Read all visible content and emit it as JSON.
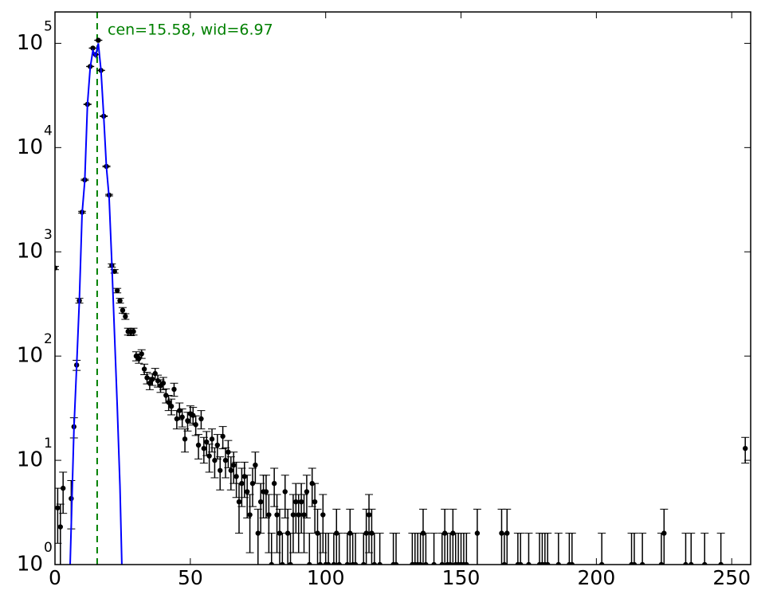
{
  "chart_data": {
    "type": "errorbar",
    "log_y": true,
    "annotation": "cen=15.58, wid=6.97",
    "vline": {
      "x": 15.58,
      "color": "#008000"
    },
    "xlim": [
      0,
      257
    ],
    "ylim": [
      1,
      200000
    ],
    "xticks": [
      0,
      50,
      100,
      150,
      200,
      250
    ],
    "yticks": [
      {
        "value": 1,
        "label": "10",
        "exponent": "0"
      },
      {
        "value": 10,
        "label": "10",
        "exponent": "1"
      },
      {
        "value": 100,
        "label": "10",
        "exponent": "2"
      },
      {
        "value": 1000,
        "label": "10",
        "exponent": "3"
      },
      {
        "value": 10000,
        "label": "10",
        "exponent": "4"
      },
      {
        "value": 100000,
        "label": "10",
        "exponent": "5"
      }
    ],
    "series": [
      {
        "color": "#000000",
        "x": [
          0,
          1,
          2,
          3,
          4,
          5,
          6,
          7,
          8,
          9,
          10,
          11,
          12,
          13,
          14,
          15,
          16,
          17,
          18,
          19,
          20,
          21,
          22,
          23,
          24,
          25,
          26,
          27,
          28,
          29,
          30,
          31,
          32,
          33,
          34,
          35,
          36,
          37,
          38,
          39,
          40,
          41,
          42,
          43,
          44,
          45,
          46,
          47,
          48,
          49,
          50,
          51,
          52,
          53,
          54,
          55,
          56,
          57,
          58,
          59,
          60,
          61,
          62,
          63,
          64,
          65,
          66,
          67,
          68,
          69,
          70,
          71,
          72,
          73,
          74,
          75,
          76,
          77,
          78,
          79,
          80,
          81,
          82,
          83,
          84,
          85,
          86,
          87,
          88,
          89,
          90,
          91,
          92,
          93,
          94,
          95,
          96,
          97,
          98,
          99,
          100,
          101,
          102,
          103,
          104,
          105,
          106,
          107,
          108,
          109,
          110,
          111,
          112,
          113,
          114,
          115,
          116,
          117,
          118,
          119,
          120,
          121,
          122,
          123,
          124,
          125,
          126,
          127,
          128,
          129,
          130,
          131,
          132,
          133,
          134,
          135,
          136,
          137,
          138,
          139,
          140,
          141,
          142,
          143,
          144,
          145,
          146,
          147,
          148,
          149,
          150,
          151,
          152,
          153,
          154,
          155,
          156,
          157,
          158,
          159,
          160,
          161,
          162,
          163,
          164,
          165,
          166,
          167,
          168,
          169,
          170,
          171,
          172,
          173,
          174,
          175,
          176,
          177,
          178,
          179,
          180,
          181,
          182,
          183,
          184,
          185,
          186,
          187,
          188,
          189,
          190,
          191,
          192,
          193,
          194,
          195,
          196,
          197,
          198,
          199,
          200,
          201,
          202,
          203,
          204,
          205,
          206,
          207,
          208,
          209,
          210,
          211,
          212,
          213,
          214,
          215,
          216,
          217,
          218,
          219,
          220,
          221,
          222,
          223,
          224,
          225,
          226,
          227,
          228,
          229,
          230,
          231,
          232,
          233,
          234,
          235,
          236,
          237,
          238,
          239,
          240,
          241,
          242,
          243,
          244,
          245,
          246,
          247,
          248,
          249,
          250,
          251,
          252,
          253,
          254,
          255
        ],
        "values": [
          700,
          3.5,
          2.3,
          5.4,
          null,
          null,
          4.3,
          21,
          82,
          340,
          2400,
          4900,
          26000,
          60000,
          90000,
          78000,
          107000,
          55000,
          20000,
          6600,
          3500,
          740,
          650,
          425,
          340,
          275,
          240,
          172,
          170,
          172,
          100,
          95,
          105,
          75,
          62,
          55,
          60,
          68,
          58,
          52,
          55,
          42,
          36,
          33,
          48,
          25,
          30,
          26,
          16,
          24,
          28,
          27,
          22,
          14,
          25,
          13,
          15,
          11,
          16,
          10,
          14,
          8,
          17,
          10,
          12,
          8,
          9,
          7,
          4,
          6,
          7,
          5,
          3,
          6,
          9,
          2,
          4,
          5,
          5,
          3,
          1,
          6,
          3,
          2,
          1,
          5,
          2,
          1,
          3,
          4,
          3,
          4,
          3,
          5,
          1,
          6,
          4,
          2,
          1,
          3,
          1,
          1,
          null,
          1,
          2,
          1,
          null,
          null,
          1,
          2,
          1,
          1,
          null,
          null,
          1,
          2,
          3,
          2,
          1,
          null,
          1,
          null,
          null,
          null,
          null,
          1,
          1,
          null,
          null,
          null,
          null,
          null,
          1,
          1,
          1,
          1,
          2,
          1,
          null,
          null,
          1,
          null,
          null,
          1,
          2,
          1,
          1,
          2,
          1,
          1,
          1,
          1,
          1,
          null,
          null,
          null,
          2,
          null,
          null,
          null,
          null,
          null,
          null,
          null,
          null,
          2,
          1,
          2,
          null,
          null,
          null,
          1,
          1,
          null,
          null,
          1,
          null,
          null,
          null,
          1,
          1,
          1,
          1,
          null,
          null,
          null,
          1,
          null,
          null,
          null,
          1,
          1,
          null,
          null,
          null,
          null,
          null,
          null,
          null,
          null,
          null,
          null,
          1,
          null,
          null,
          null,
          null,
          null,
          null,
          null,
          null,
          null,
          null,
          1,
          1,
          null,
          null,
          1,
          null,
          null,
          null,
          null,
          null,
          null,
          1,
          2,
          null,
          null,
          null,
          null,
          null,
          null,
          null,
          1,
          null,
          1,
          null,
          null,
          null,
          null,
          1,
          null,
          null,
          null,
          null,
          null,
          1,
          null,
          null,
          null,
          null,
          null,
          null,
          null,
          null,
          13
        ],
        "errors": [
          26,
          1.9,
          1.5,
          2.3,
          null,
          null,
          2.1,
          4.6,
          9.1,
          18,
          49,
          70,
          161,
          245,
          300,
          279,
          327,
          235,
          141,
          81,
          59,
          27,
          25,
          21,
          18,
          17,
          15,
          13,
          13,
          13,
          10,
          9.7,
          10,
          8.7,
          7.9,
          7.4,
          7.7,
          8.2,
          7.6,
          7.2,
          7.4,
          6.5,
          6,
          5.7,
          6.9,
          5,
          5.5,
          5.1,
          4,
          4.9,
          5.3,
          5.2,
          4.7,
          3.7,
          5,
          3.6,
          3.9,
          3.3,
          4,
          3.2,
          3.7,
          2.8,
          4.1,
          3.2,
          3.5,
          2.8,
          3,
          2.6,
          2,
          2.4,
          2.6,
          2.2,
          1.7,
          2.4,
          3,
          1.4,
          2,
          2.2,
          2.2,
          1.7,
          1,
          2.4,
          1.7,
          1.4,
          1,
          2.2,
          1.4,
          1,
          1.7,
          2,
          1.7,
          2,
          1.7,
          2.2,
          1,
          2.4,
          2,
          1.4,
          1,
          1.7,
          1,
          1,
          null,
          1,
          1.4,
          1,
          null,
          null,
          1,
          1.4,
          1,
          1,
          null,
          null,
          1,
          1.4,
          1.7,
          1.4,
          1,
          null,
          1,
          null,
          null,
          null,
          null,
          1,
          1,
          null,
          null,
          null,
          null,
          null,
          1,
          1,
          1,
          1,
          1.4,
          1,
          null,
          null,
          1,
          null,
          null,
          1,
          1.4,
          1,
          1,
          1.4,
          1,
          1,
          1,
          1,
          1,
          null,
          null,
          null,
          1.4,
          null,
          null,
          null,
          null,
          null,
          null,
          null,
          null,
          1.4,
          1,
          1.4,
          null,
          null,
          null,
          1,
          1,
          null,
          null,
          1,
          null,
          null,
          null,
          1,
          1,
          1,
          1,
          null,
          null,
          null,
          1,
          null,
          null,
          null,
          1,
          1,
          null,
          null,
          null,
          null,
          null,
          null,
          null,
          null,
          null,
          null,
          1,
          null,
          null,
          null,
          null,
          null,
          null,
          null,
          null,
          null,
          null,
          1,
          1,
          null,
          null,
          1,
          null,
          null,
          null,
          null,
          null,
          null,
          1,
          1.4,
          null,
          null,
          null,
          null,
          null,
          null,
          null,
          1,
          null,
          1,
          null,
          null,
          null,
          null,
          1,
          null,
          null,
          null,
          null,
          null,
          1,
          null,
          null,
          null,
          null,
          null,
          null,
          null,
          null,
          3.6
        ]
      }
    ],
    "fit": {
      "color": "#0000ff",
      "x": [
        5.6,
        7,
        8,
        9,
        10,
        11,
        12,
        13,
        14,
        15,
        16,
        17,
        18,
        19,
        20,
        21,
        22,
        23,
        24,
        24.7
      ],
      "values": [
        1,
        20,
        80,
        340,
        2300,
        4800,
        26000,
        58000,
        85000,
        75000,
        100000,
        55000,
        20000,
        6500,
        3300,
        780,
        160,
        33,
        5.7,
        1
      ]
    }
  }
}
